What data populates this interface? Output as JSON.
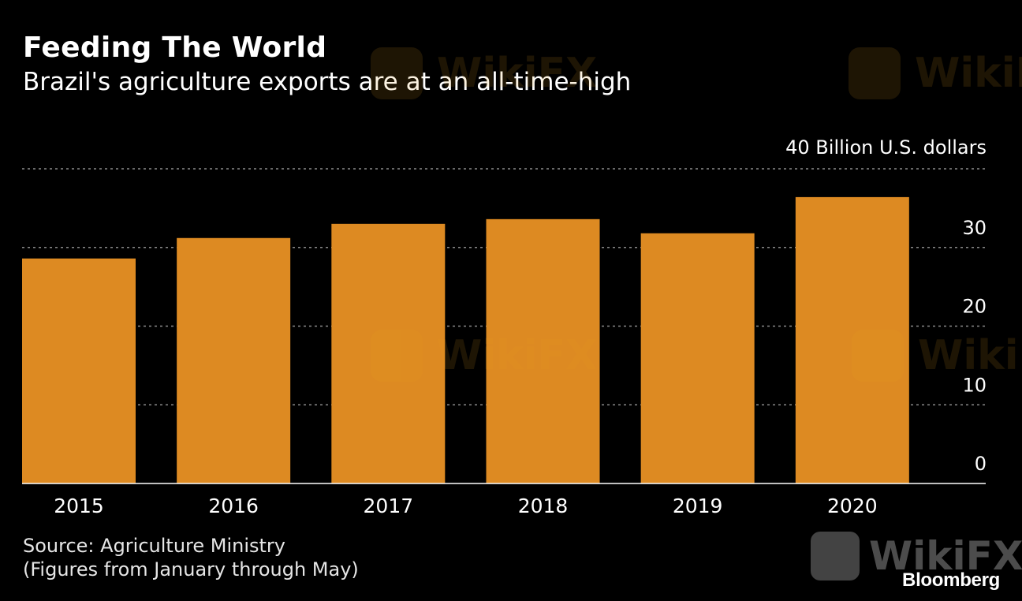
{
  "header": {
    "title": "Feeding The World",
    "subtitle": "Brazil's agriculture exports are at an all-time-high"
  },
  "chart_data": {
    "type": "bar",
    "categories": [
      "2015",
      "2016",
      "2017",
      "2018",
      "2019",
      "2020"
    ],
    "values": [
      28.6,
      31.2,
      33.0,
      33.6,
      31.8,
      36.4
    ],
    "ylabel": "40 Billion U.S. dollars",
    "ylim": [
      0,
      40
    ],
    "yticks": [
      "0",
      "10",
      "20",
      "30"
    ],
    "grid": true,
    "bar_color": "#dd8a22",
    "grid_color": "#8a8a8a",
    "axis_color": "#ffffff"
  },
  "footer": {
    "source": "Source: Agriculture Ministry",
    "note": "(Figures from January through May)",
    "brand": "Bloomberg",
    "watermark": "WikiFX"
  }
}
